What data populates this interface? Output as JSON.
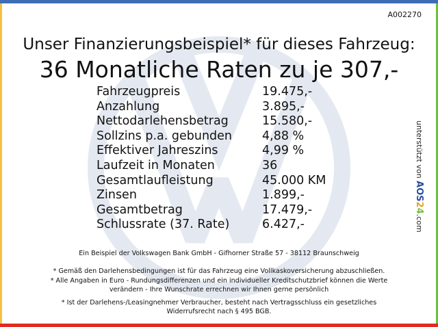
{
  "ref_code": "A002270",
  "headline": "Unser Finanzierungsbeispiel* für dieses Fahrzeug:",
  "subheadline": "36 Monatliche Raten zu je 307,-",
  "rows": [
    {
      "label": "Fahrzeugpreis",
      "value": "19.475,-"
    },
    {
      "label": "Anzahlung",
      "value": "3.895,-"
    },
    {
      "label": "Nettodarlehensbetrag",
      "value": "15.580,-"
    },
    {
      "label": "Sollzins p.a. gebunden",
      "value": "4,88 %"
    },
    {
      "label": "Effektiver Jahreszins",
      "value": "4,99 %"
    },
    {
      "label": "Laufzeit in Monaten",
      "value": "36"
    },
    {
      "label": "Gesamtlaufleistung",
      "value": "45.000 KM"
    },
    {
      "label": "Zinsen",
      "value": "1.899,-"
    },
    {
      "label": "Gesamtbetrag",
      "value": "17.479,-"
    },
    {
      "label": "Schlussrate (37. Rate)",
      "value": "6.427,-"
    }
  ],
  "side": {
    "prefix": "unterstützt von",
    "brand": "AOS24",
    "suffix": ".com"
  },
  "footer": {
    "bank": "Ein Beispiel der Volkswagen Bank GmbH - Gifhorner Straße 57 - 38112 Braunschweig",
    "note1": "* Gemäß den Darlehensbedingungen ist für das Fahrzeug eine Vollkaskoversicherung abzuschließen.",
    "note2a": "* Alle Angaben in Euro - Rundungsdifferenzen und ein individueller Kreditschutzbrief können die Werte",
    "note2b": "verändern - Ihre Wunschrate errechnen wir Ihnen gerne persönlich",
    "note3a": "* Ist der Darlehens-/Leasingnehmer Verbraucher, besteht nach Vertragsschluss ein gesetzliches",
    "note3b": "Widerrufsrecht nach § 495 BGB."
  },
  "colors": {
    "top": "#3f6db5",
    "left": "#f5c040",
    "right": "#6cbf3c",
    "bottom": "#e02b20",
    "watermark": "#e4e9f1"
  }
}
